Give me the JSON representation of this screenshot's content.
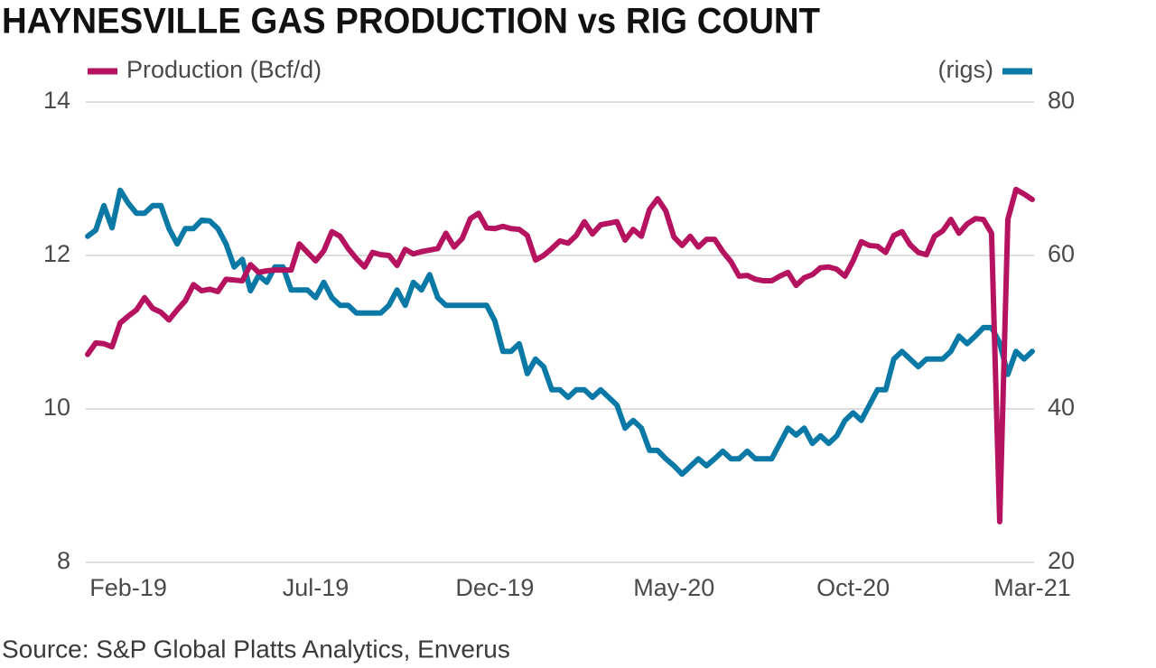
{
  "chart_data": {
    "type": "line",
    "title": "HAYNESVILLE GAS PRODUCTION vs RIG COUNT",
    "source": "Source: S&P Global Platts Analytics, Enverus",
    "categories": [
      null,
      null,
      null,
      null,
      null,
      "Feb-19",
      null,
      null,
      null,
      null,
      null,
      null,
      null,
      null,
      null,
      null,
      null,
      null,
      null,
      null,
      null,
      null,
      null,
      null,
      null,
      null,
      null,
      null,
      "Jul-19",
      null,
      null,
      null,
      null,
      null,
      null,
      null,
      null,
      null,
      null,
      null,
      null,
      null,
      null,
      null,
      null,
      null,
      null,
      null,
      null,
      null,
      "Dec-19",
      null,
      null,
      null,
      null,
      null,
      null,
      null,
      null,
      null,
      null,
      null,
      null,
      null,
      null,
      null,
      null,
      null,
      null,
      null,
      null,
      null,
      "May-20",
      null,
      null,
      null,
      null,
      null,
      null,
      null,
      null,
      null,
      null,
      null,
      null,
      null,
      null,
      null,
      null,
      null,
      null,
      null,
      null,
      null,
      "Oct-20",
      null,
      null,
      null,
      null,
      null,
      null,
      null,
      null,
      null,
      null,
      null,
      null,
      null,
      null,
      null,
      null,
      null,
      null,
      null,
      null,
      null,
      "Mar-21"
    ],
    "series": [
      {
        "name": "Production (Bcf/d)",
        "color": "#b5125f",
        "axis": "y",
        "values": [
          10.71,
          10.86,
          10.85,
          10.81,
          11.12,
          11.21,
          11.29,
          11.45,
          11.31,
          11.26,
          11.16,
          11.29,
          11.41,
          11.62,
          11.54,
          11.56,
          11.53,
          11.69,
          11.68,
          11.67,
          11.88,
          11.78,
          11.8,
          11.81,
          11.81,
          11.81,
          12.15,
          12.04,
          11.93,
          12.06,
          12.31,
          12.25,
          12.09,
          11.96,
          11.85,
          12.04,
          12.01,
          12.0,
          11.87,
          12.08,
          12.02,
          12.05,
          12.07,
          12.09,
          12.29,
          12.11,
          12.22,
          12.48,
          12.55,
          12.36,
          12.35,
          12.38,
          12.35,
          12.34,
          12.26,
          11.94,
          12.0,
          12.09,
          12.19,
          12.16,
          12.26,
          12.44,
          12.28,
          12.4,
          12.42,
          12.44,
          12.2,
          12.34,
          12.25,
          12.6,
          12.74,
          12.58,
          12.24,
          12.13,
          12.25,
          12.11,
          12.21,
          12.21,
          12.05,
          11.92,
          11.73,
          11.74,
          11.69,
          11.67,
          11.67,
          11.73,
          11.78,
          11.61,
          11.71,
          11.75,
          11.84,
          11.85,
          11.82,
          11.73,
          11.93,
          12.18,
          12.13,
          12.12,
          12.04,
          12.26,
          12.31,
          12.14,
          12.04,
          12.01,
          12.25,
          12.32,
          12.47,
          12.29,
          12.41,
          12.48,
          12.47,
          12.29,
          8.53,
          12.47,
          12.86,
          12.8,
          12.73
        ]
      },
      {
        "name": "(rigs)",
        "color": "#0b79a6",
        "axis": "y2",
        "values": [
          62.5,
          63.3,
          66.5,
          63.6,
          68.5,
          66.8,
          65.5,
          65.5,
          66.5,
          66.5,
          63.5,
          61.5,
          63.5,
          63.5,
          64.6,
          64.5,
          63.5,
          61.5,
          58.5,
          59.5,
          55.4,
          57.4,
          56.5,
          58.5,
          58.5,
          55.5,
          55.5,
          55.5,
          54.5,
          56.5,
          54.5,
          53.5,
          53.5,
          52.5,
          52.5,
          52.5,
          52.5,
          53.5,
          55.5,
          53.5,
          56.5,
          55.5,
          57.5,
          54.5,
          53.5,
          53.5,
          53.5,
          53.5,
          53.5,
          53.5,
          51.5,
          47.5,
          47.5,
          48.5,
          44.6,
          46.5,
          45.5,
          42.5,
          42.5,
          41.5,
          42.5,
          42.5,
          41.5,
          42.5,
          41.5,
          40.5,
          37.5,
          38.5,
          37.5,
          34.6,
          34.6,
          33.5,
          32.6,
          31.5,
          32.5,
          33.5,
          32.6,
          33.5,
          34.5,
          33.5,
          33.5,
          34.5,
          33.5,
          33.5,
          33.5,
          35.5,
          37.5,
          36.6,
          37.5,
          35.5,
          36.5,
          35.5,
          36.5,
          38.5,
          39.5,
          38.5,
          40.5,
          42.5,
          42.5,
          46.5,
          47.5,
          46.5,
          45.5,
          46.5,
          46.5,
          46.5,
          47.5,
          49.5,
          48.5,
          49.5,
          50.6,
          50.6,
          48.6,
          44.5,
          47.5,
          46.5,
          47.5
        ]
      }
    ],
    "ylim": [
      8,
      14
    ],
    "yticks": [
      8,
      10,
      12,
      14
    ],
    "y2lim": [
      20,
      80
    ],
    "y2ticks": [
      20,
      40,
      60,
      80
    ],
    "grid": true
  }
}
